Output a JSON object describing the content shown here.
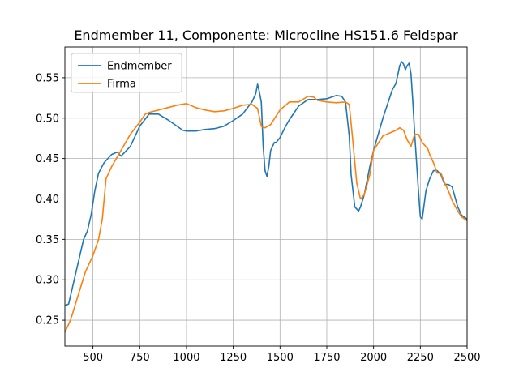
{
  "chart_data": {
    "type": "line",
    "title": "Endmember 11, Componente: Microcline HS151.6  Feldspar",
    "xlabel": "",
    "ylabel": "",
    "xlim": [
      350,
      2500
    ],
    "ylim": [
      0.218,
      0.588
    ],
    "xticks": [
      500,
      750,
      1000,
      1250,
      1500,
      1750,
      2000,
      2250,
      2500
    ],
    "yticks": [
      0.25,
      0.3,
      0.35,
      0.4,
      0.45,
      0.5,
      0.55
    ],
    "grid": true,
    "legend_position": "top-left",
    "series": [
      {
        "name": "Endmember",
        "color": "#1f77b4",
        "x": [
          350,
          370,
          400,
          430,
          450,
          470,
          490,
          510,
          530,
          560,
          600,
          630,
          650,
          700,
          750,
          800,
          850,
          900,
          950,
          980,
          1000,
          1050,
          1100,
          1150,
          1200,
          1250,
          1300,
          1350,
          1370,
          1380,
          1390,
          1400,
          1410,
          1420,
          1430,
          1440,
          1450,
          1470,
          1480,
          1500,
          1530,
          1550,
          1600,
          1650,
          1700,
          1750,
          1800,
          1830,
          1850,
          1870,
          1880,
          1900,
          1920,
          1930,
          1950,
          1980,
          2000,
          2050,
          2100,
          2120,
          2140,
          2150,
          2160,
          2170,
          2180,
          2190,
          2200,
          2210,
          2220,
          2240,
          2250,
          2260,
          2280,
          2300,
          2320,
          2340,
          2360,
          2380,
          2400,
          2420,
          2450,
          2470,
          2500
        ],
        "y": [
          0.268,
          0.27,
          0.3,
          0.33,
          0.35,
          0.36,
          0.38,
          0.41,
          0.432,
          0.445,
          0.455,
          0.458,
          0.453,
          0.465,
          0.49,
          0.505,
          0.505,
          0.498,
          0.49,
          0.485,
          0.484,
          0.484,
          0.486,
          0.487,
          0.49,
          0.497,
          0.505,
          0.52,
          0.53,
          0.542,
          0.532,
          0.52,
          0.465,
          0.435,
          0.428,
          0.44,
          0.46,
          0.47,
          0.47,
          0.476,
          0.49,
          0.498,
          0.515,
          0.523,
          0.523,
          0.524,
          0.528,
          0.527,
          0.52,
          0.478,
          0.43,
          0.39,
          0.385,
          0.39,
          0.405,
          0.44,
          0.46,
          0.5,
          0.535,
          0.543,
          0.565,
          0.57,
          0.567,
          0.56,
          0.565,
          0.568,
          0.555,
          0.52,
          0.48,
          0.41,
          0.378,
          0.375,
          0.41,
          0.425,
          0.435,
          0.435,
          0.43,
          0.418,
          0.418,
          0.415,
          0.39,
          0.38,
          0.375
        ]
      },
      {
        "name": "Firma",
        "color": "#ff7f0e",
        "x": [
          350,
          380,
          420,
          460,
          500,
          530,
          550,
          570,
          600,
          650,
          700,
          750,
          780,
          800,
          850,
          900,
          950,
          1000,
          1050,
          1100,
          1150,
          1200,
          1250,
          1300,
          1350,
          1380,
          1400,
          1420,
          1450,
          1480,
          1500,
          1550,
          1600,
          1650,
          1680,
          1700,
          1750,
          1800,
          1850,
          1870,
          1890,
          1910,
          1930,
          1950,
          1980,
          2000,
          2050,
          2100,
          2120,
          2140,
          2160,
          2180,
          2200,
          2220,
          2240,
          2260,
          2290,
          2300,
          2320,
          2340,
          2360,
          2380,
          2400,
          2420,
          2450,
          2470,
          2500
        ],
        "y": [
          0.235,
          0.25,
          0.28,
          0.31,
          0.33,
          0.35,
          0.375,
          0.425,
          0.44,
          0.46,
          0.48,
          0.495,
          0.505,
          0.507,
          0.51,
          0.513,
          0.516,
          0.518,
          0.513,
          0.51,
          0.508,
          0.509,
          0.512,
          0.516,
          0.517,
          0.512,
          0.49,
          0.488,
          0.492,
          0.503,
          0.51,
          0.52,
          0.52,
          0.527,
          0.526,
          0.522,
          0.52,
          0.519,
          0.52,
          0.517,
          0.47,
          0.42,
          0.4,
          0.405,
          0.43,
          0.46,
          0.478,
          0.483,
          0.485,
          0.488,
          0.485,
          0.473,
          0.465,
          0.48,
          0.48,
          0.47,
          0.462,
          0.455,
          0.445,
          0.432,
          0.432,
          0.42,
          0.41,
          0.398,
          0.385,
          0.378,
          0.373
        ]
      }
    ]
  }
}
